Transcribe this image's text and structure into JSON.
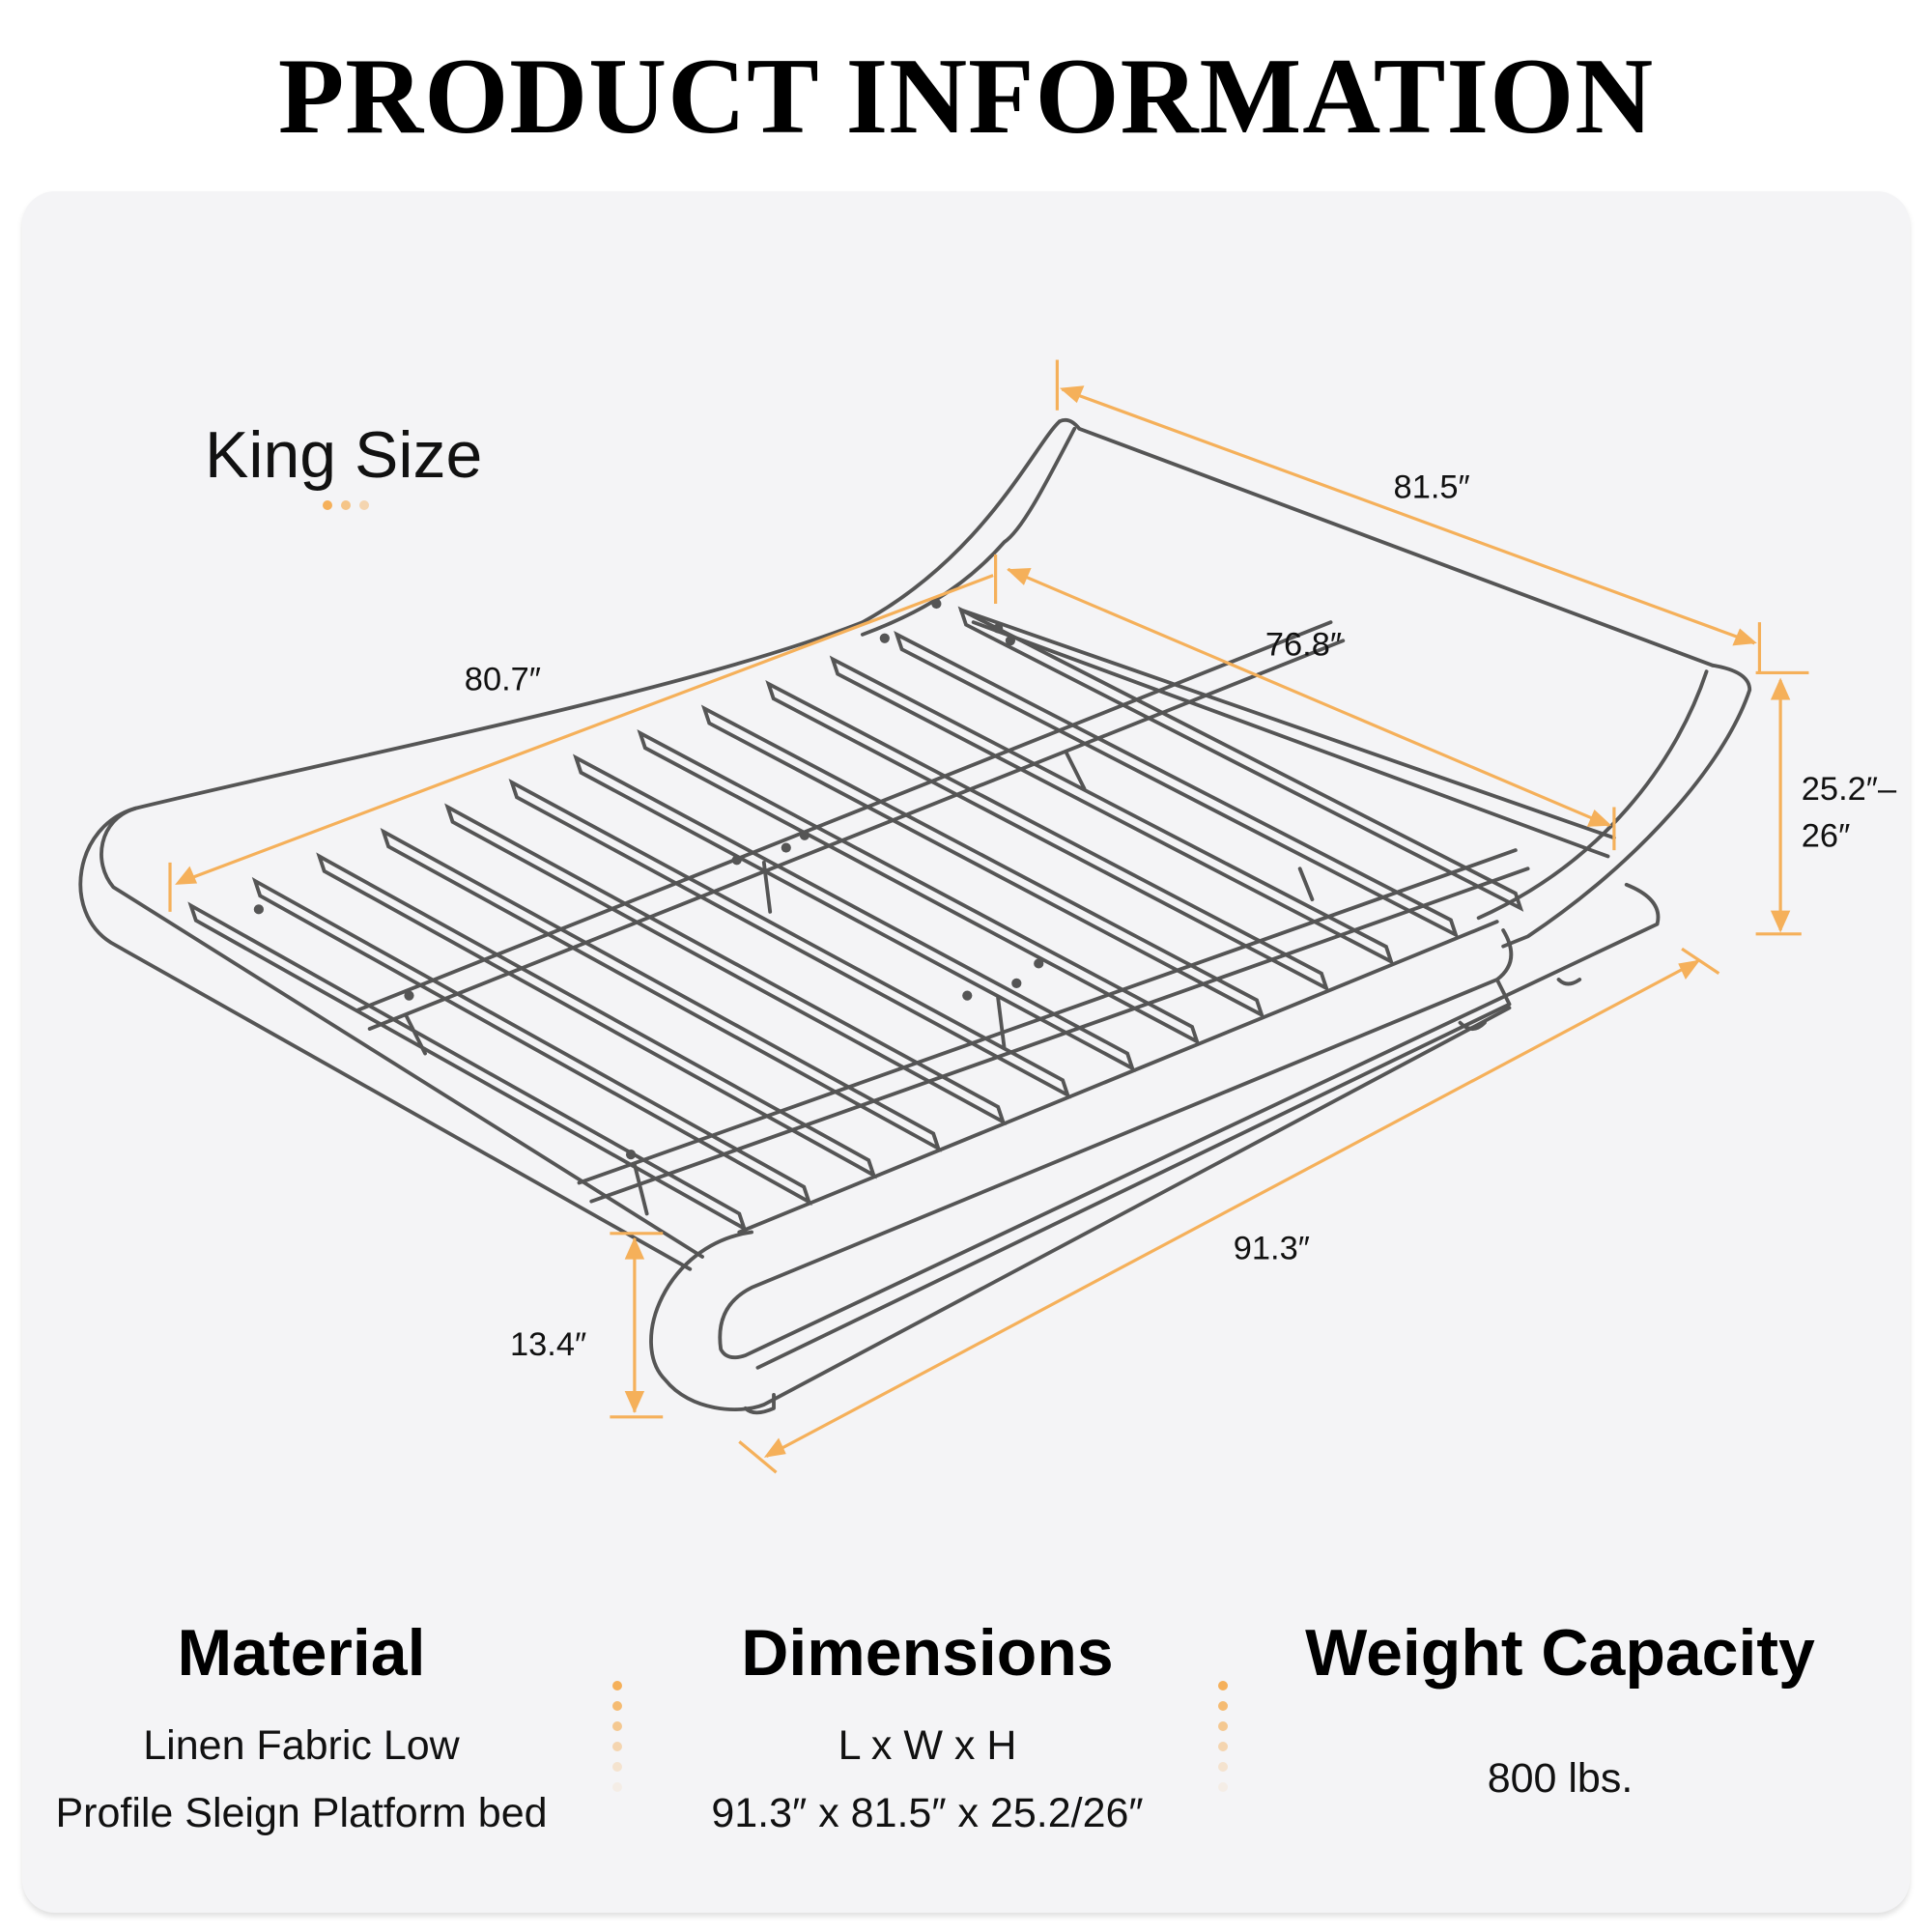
{
  "header": {
    "title": "PRODUCT INFORMATION"
  },
  "product": {
    "size_label": "King Size"
  },
  "dimensions_diagram": {
    "headboard_width": "81.5″",
    "inner_width": "76.8″",
    "inner_length": "80.7″",
    "height_line1": "25.2″–",
    "height_line2": "26″",
    "overall_length": "91.3″",
    "side_height": "13.4″"
  },
  "specs": [
    {
      "heading": "Material",
      "lines": [
        "Linen Fabric Low",
        "Profile Sleign Platform bed"
      ]
    },
    {
      "heading": "Dimensions",
      "lines": [
        "L x W x H",
        "91.3″ x 81.5″ x 25.2/26″"
      ]
    },
    {
      "heading": "Weight Capacity",
      "lines": [
        "800 lbs."
      ]
    }
  ],
  "colors": {
    "accent": "#f5b05a",
    "line": "#555555",
    "card": "#f4f4f6"
  }
}
